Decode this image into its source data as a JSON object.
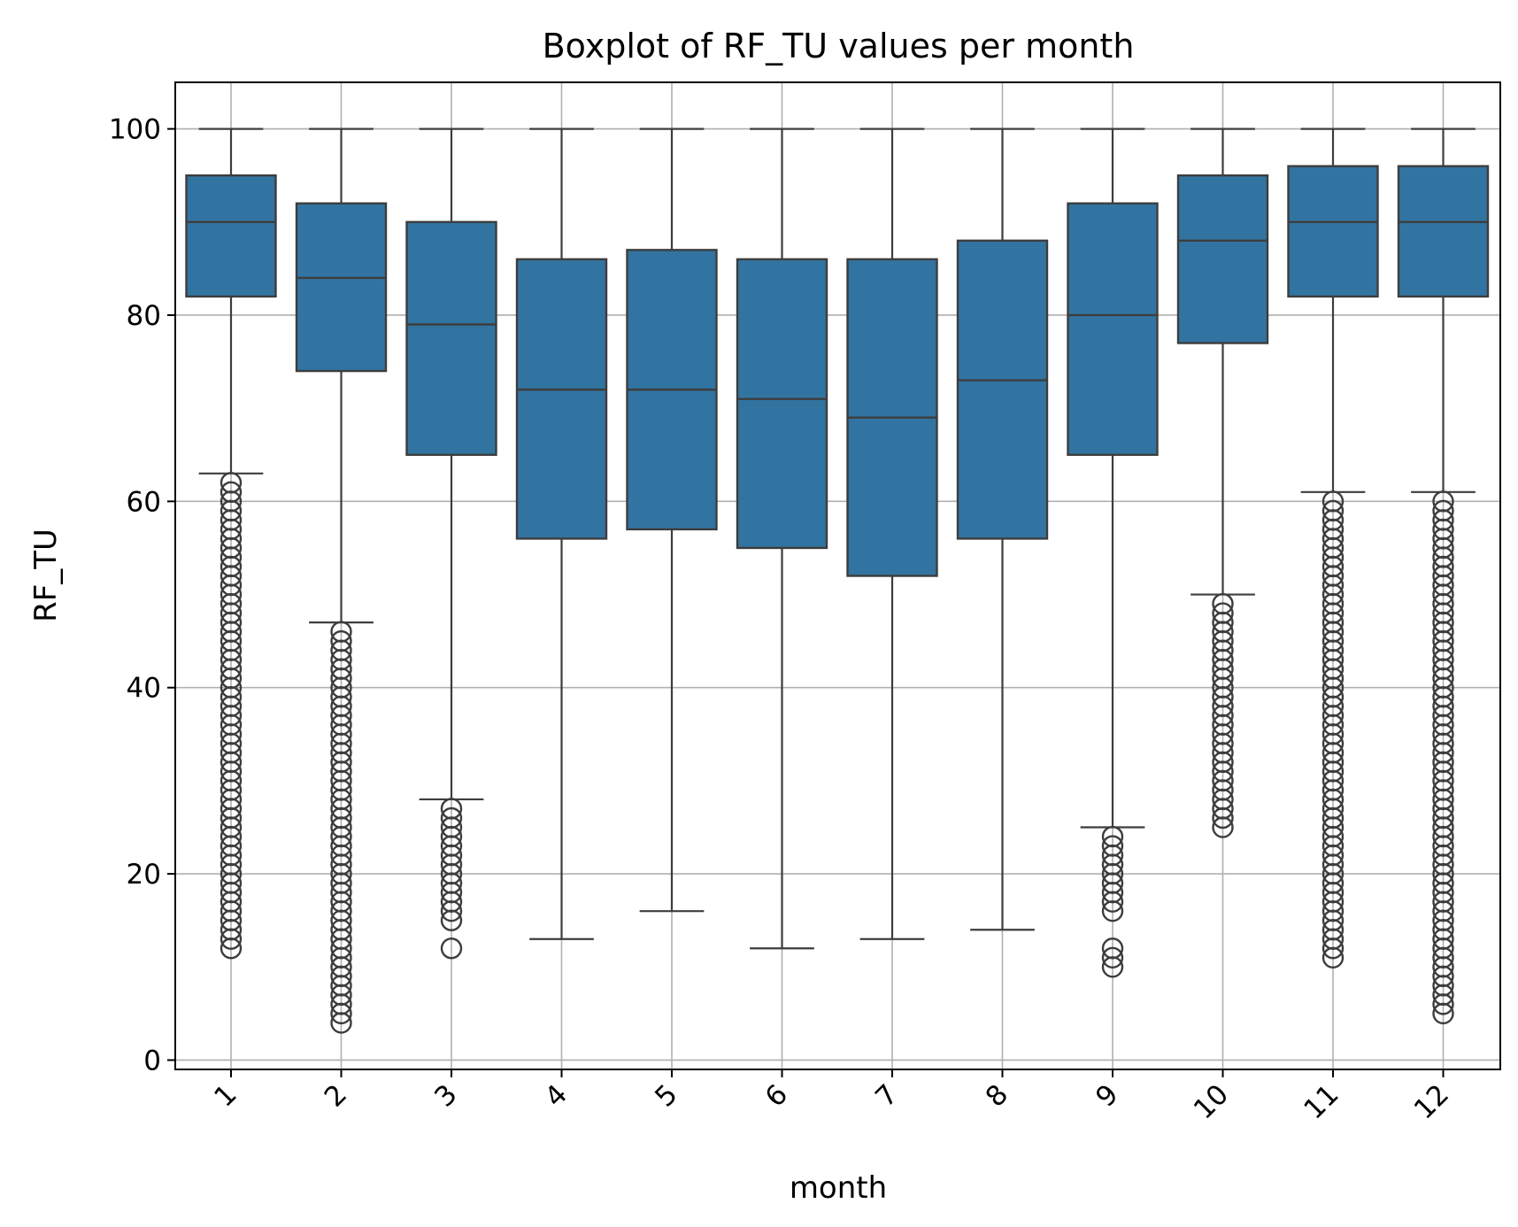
{
  "chart_data": {
    "type": "boxplot",
    "title": "Boxplot of RF_TU values per month",
    "xlabel": "month",
    "ylabel": "RF_TU",
    "categories": [
      "1",
      "2",
      "3",
      "4",
      "5",
      "6",
      "7",
      "8",
      "9",
      "10",
      "11",
      "12"
    ],
    "ylim": [
      -1,
      105
    ],
    "yticks": [
      0,
      20,
      40,
      60,
      80,
      100
    ],
    "grid": true,
    "color": "#3274a1",
    "edge_color": "#3d3d3d",
    "boxes": [
      {
        "month": "1",
        "whisker_low": 63,
        "q1": 82,
        "median": 90,
        "q3": 95,
        "whisker_high": 100,
        "outlier_range": [
          12,
          62
        ]
      },
      {
        "month": "2",
        "whisker_low": 47,
        "q1": 74,
        "median": 84,
        "q3": 92,
        "whisker_high": 100,
        "outlier_range": [
          4,
          46
        ]
      },
      {
        "month": "3",
        "whisker_low": 28,
        "q1": 65,
        "median": 79,
        "q3": 90,
        "whisker_high": 100,
        "outlier_range": [
          15,
          27
        ],
        "extra_outliers": [
          12
        ]
      },
      {
        "month": "4",
        "whisker_low": 13,
        "q1": 56,
        "median": 72,
        "q3": 86,
        "whisker_high": 100,
        "outlier_range": null
      },
      {
        "month": "5",
        "whisker_low": 16,
        "q1": 57,
        "median": 72,
        "q3": 87,
        "whisker_high": 100,
        "outlier_range": null
      },
      {
        "month": "6",
        "whisker_low": 12,
        "q1": 55,
        "median": 71,
        "q3": 86,
        "whisker_high": 100,
        "outlier_range": null
      },
      {
        "month": "7",
        "whisker_low": 13,
        "q1": 52,
        "median": 69,
        "q3": 86,
        "whisker_high": 100,
        "outlier_range": null
      },
      {
        "month": "8",
        "whisker_low": 14,
        "q1": 56,
        "median": 73,
        "q3": 88,
        "whisker_high": 100,
        "outlier_range": null
      },
      {
        "month": "9",
        "whisker_low": 25,
        "q1": 65,
        "median": 80,
        "q3": 92,
        "whisker_high": 100,
        "outlier_range": [
          16,
          24
        ],
        "extra_outliers": [
          10,
          11,
          12
        ]
      },
      {
        "month": "10",
        "whisker_low": 50,
        "q1": 77,
        "median": 88,
        "q3": 95,
        "whisker_high": 100,
        "outlier_range": [
          25,
          49
        ]
      },
      {
        "month": "11",
        "whisker_low": 61,
        "q1": 82,
        "median": 90,
        "q3": 96,
        "whisker_high": 100,
        "outlier_range": [
          11,
          60
        ]
      },
      {
        "month": "12",
        "whisker_low": 61,
        "q1": 82,
        "median": 90,
        "q3": 96,
        "whisker_high": 100,
        "outlier_range": [
          5,
          60
        ]
      }
    ]
  }
}
